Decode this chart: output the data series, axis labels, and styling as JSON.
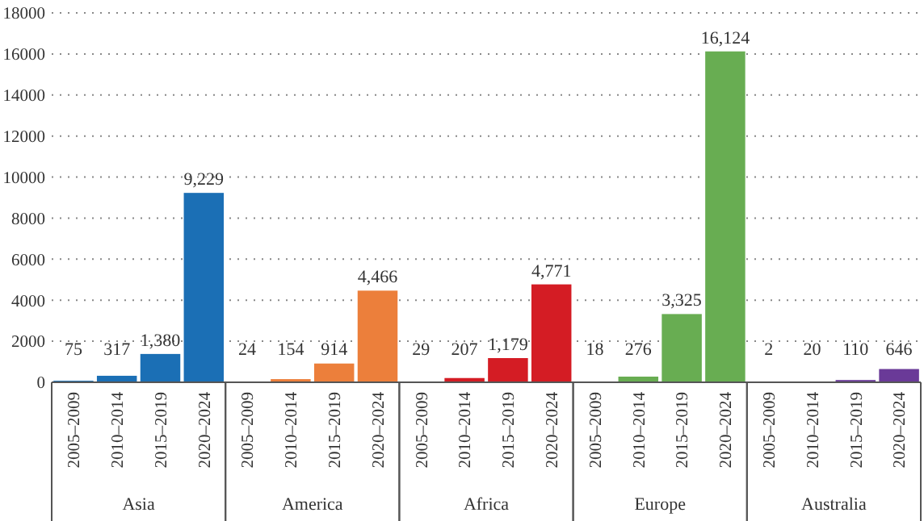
{
  "chart_data": {
    "type": "bar",
    "categories": [
      "2005–2009",
      "2010–2014",
      "2015–2019",
      "2020–2024",
      "2005–2009",
      "2010–2014",
      "2015–2019",
      "2020–2024",
      "2005–2009",
      "2010–2014",
      "2015–2019",
      "2020–2024",
      "2005–2009",
      "2010–2014",
      "2015–2019",
      "2020–2024",
      "2005–2009",
      "2010–2014",
      "2015–2019",
      "2020–2024"
    ],
    "values": [
      75,
      317,
      1380,
      9229,
      24,
      154,
      914,
      4466,
      29,
      207,
      1179,
      4771,
      18,
      276,
      3325,
      16124,
      2,
      20,
      110,
      646
    ],
    "value_labels": [
      "75",
      "317",
      "1,380",
      "9,229",
      "24",
      "154",
      "914",
      "4,466",
      "29",
      "207",
      "1,179",
      "4,771",
      "18",
      "276",
      "3,325",
      "16,124",
      "2",
      "20",
      "110",
      "646"
    ],
    "colors": [
      "#1b6fb5",
      "#1b6fb5",
      "#1b6fb5",
      "#1b6fb5",
      "#ec7f3b",
      "#ec7f3b",
      "#ec7f3b",
      "#ec7f3b",
      "#d41c24",
      "#d41c24",
      "#d41c24",
      "#d41c24",
      "#68ad52",
      "#68ad52",
      "#68ad52",
      "#68ad52",
      "#6a3a98",
      "#6a3a98",
      "#6a3a98",
      "#6a3a98"
    ],
    "annotations": [
      "Asia",
      "America",
      "Africa",
      "Europe",
      "Australia"
    ],
    "ylim": [
      0,
      18000
    ],
    "yticks": [
      0,
      2000,
      4000,
      6000,
      8000,
      10000,
      12000,
      14000,
      16000,
      18000
    ],
    "grid": "y"
  }
}
